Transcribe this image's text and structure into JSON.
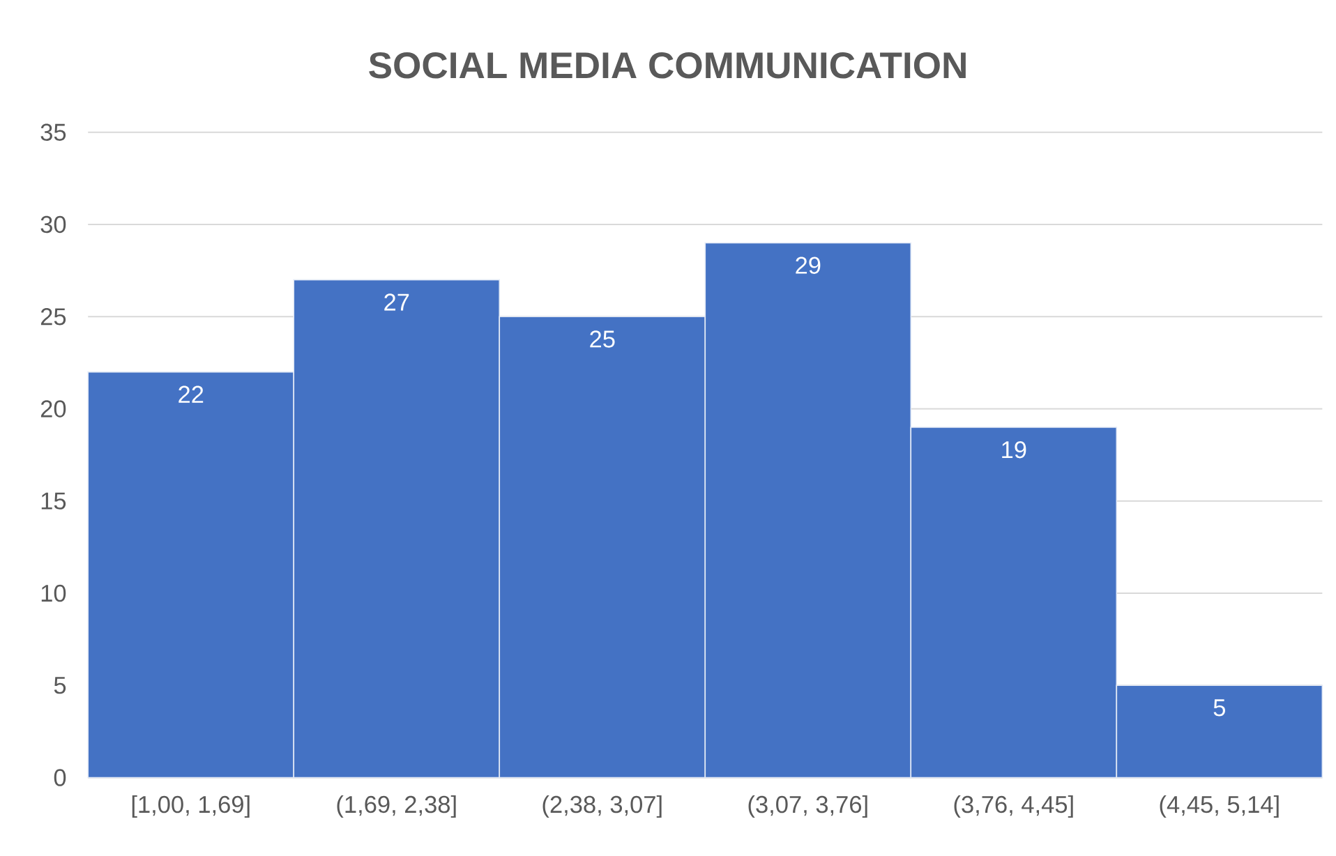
{
  "chart_data": {
    "type": "bar",
    "title": "SOCIAL MEDIA COMMUNICATION",
    "categories": [
      "[1,00, 1,69]",
      "(1,69, 2,38]",
      "(2,38, 3,07]",
      "(3,07, 3,76]",
      "(3,76, 4,45]",
      "(4,45, 5,14]"
    ],
    "values": [
      22,
      27,
      25,
      29,
      19,
      5
    ],
    "color": "#4472c4",
    "ylim": [
      0,
      35
    ],
    "yticks": [
      0,
      5,
      10,
      15,
      20,
      25,
      30,
      35
    ],
    "grid": "y",
    "data_labels": true
  }
}
